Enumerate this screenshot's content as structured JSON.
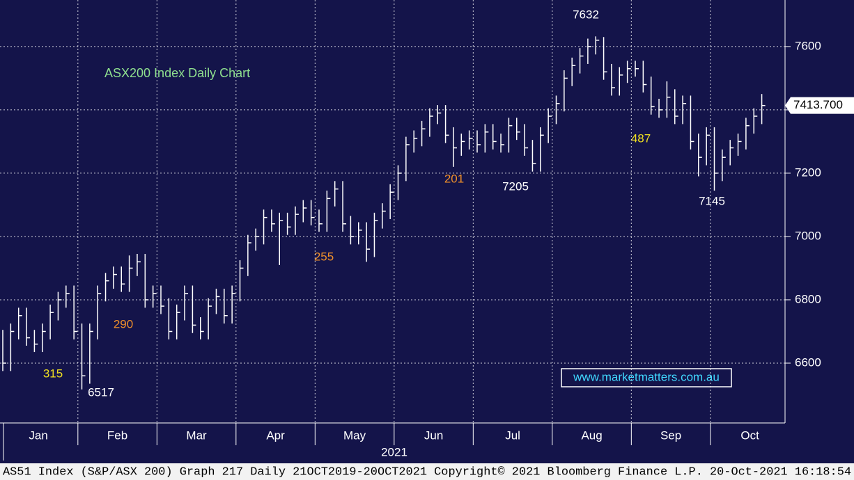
{
  "chart_data": {
    "type": "ohlc",
    "title": "ASX200 Index Daily Chart",
    "watermark": "www.marketmatters.com.au",
    "footer": "AS51 Index (S&P/ASX 200) Graph 217  Daily 21OCT2019-20OCT2021 Copyright© 2021 Bloomberg Finance L.P. 20-Oct-2021 16:18:54",
    "x_labels": [
      "Jan",
      "Feb",
      "Mar",
      "Apr",
      "May",
      "Jun",
      "Jul",
      "Aug",
      "Sep",
      "Oct"
    ],
    "year_label": "2021",
    "color": "#ffffff",
    "ylim": [
      6411,
      7747
    ],
    "yticks": [
      6600,
      6800,
      7000,
      7200,
      7400,
      7600
    ],
    "grid": true,
    "last_price": {
      "value": 7413.7,
      "label": "7413.700"
    },
    "annotations": [
      "7632",
      "7205",
      "7145",
      "6517",
      "315",
      "290",
      "255",
      "201",
      "487"
    ],
    "high": [
      6705,
      6725,
      6775,
      6775,
      6705,
      6725,
      6785,
      6825,
      6845,
      6845,
      6725,
      6725,
      6845,
      6885,
      6905,
      6905,
      6940,
      6945,
      6945,
      6845,
      6845,
      6805,
      6785,
      6845,
      6845,
      6745,
      6805,
      6835,
      6835,
      6845,
      6925,
      7005,
      7025,
      7085,
      7085,
      7075,
      7075,
      7095,
      7115,
      7115,
      7085,
      7145,
      7175,
      7175,
      7065,
      7045,
      7045,
      7075,
      7105,
      7165,
      7225,
      7315,
      7335,
      7365,
      7405,
      7415,
      7415,
      7345,
      7325,
      7335,
      7335,
      7355,
      7355,
      7325,
      7375,
      7375,
      7355,
      7305,
      7345,
      7405,
      7445,
      7525,
      7565,
      7595,
      7625,
      7632,
      7630,
      7545,
      7535,
      7555,
      7555,
      7555,
      7505,
      7435,
      7490,
      7465,
      7445,
      7445,
      7325,
      7345,
      7345,
      7275,
      7305,
      7325,
      7375,
      7405,
      7450
    ],
    "low": [
      6575,
      6575,
      6675,
      6655,
      6635,
      6635,
      6675,
      6735,
      6775,
      6675,
      6517,
      6535,
      6675,
      6795,
      6835,
      6825,
      6825,
      6875,
      6775,
      6775,
      6755,
      6675,
      6675,
      6735,
      6695,
      6675,
      6675,
      6755,
      6725,
      6725,
      6795,
      6875,
      6955,
      6975,
      7015,
      6910,
      7005,
      7005,
      7045,
      7035,
      7015,
      7015,
      7095,
      7015,
      6975,
      6975,
      6920,
      6935,
      7025,
      7055,
      7115,
      7175,
      7265,
      7285,
      7315,
      7355,
      7295,
      7220,
      7255,
      7275,
      7265,
      7265,
      7275,
      7265,
      7265,
      7305,
      7255,
      7205,
      7205,
      7295,
      7355,
      7395,
      7475,
      7515,
      7545,
      7575,
      7495,
      7445,
      7445,
      7485,
      7505,
      7455,
      7385,
      7375,
      7375,
      7355,
      7355,
      7275,
      7190,
      7225,
      7145,
      7175,
      7225,
      7255,
      7275,
      7325,
      7355
    ],
    "close": [
      6600,
      6700,
      6750,
      6680,
      6660,
      6700,
      6760,
      6800,
      6820,
      6700,
      6560,
      6700,
      6820,
      6860,
      6880,
      6850,
      6900,
      6920,
      6800,
      6820,
      6780,
      6700,
      6760,
      6820,
      6720,
      6700,
      6780,
      6810,
      6750,
      6820,
      6900,
      6980,
      7000,
      7060,
      7040,
      7050,
      7030,
      7070,
      7090,
      7060,
      7040,
      7120,
      7150,
      7040,
      7000,
      7020,
      6960,
      7050,
      7080,
      7140,
      7200,
      7290,
      7310,
      7340,
      7380,
      7390,
      7320,
      7280,
      7300,
      7310,
      7290,
      7330,
      7300,
      7290,
      7350,
      7330,
      7280,
      7230,
      7320,
      7380,
      7420,
      7500,
      7540,
      7570,
      7600,
      7620,
      7520,
      7470,
      7510,
      7530,
      7530,
      7480,
      7410,
      7400,
      7440,
      7380,
      7420,
      7300,
      7250,
      7320,
      7200,
      7250,
      7280,
      7300,
      7350,
      7380,
      7413.7
    ]
  }
}
